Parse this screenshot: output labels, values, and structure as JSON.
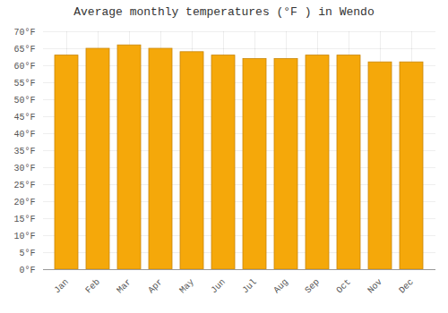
{
  "chart_data": {
    "type": "bar",
    "title": "Average monthly temperatures (°F ) in Wendo",
    "categories": [
      "Jan",
      "Feb",
      "Mar",
      "Apr",
      "May",
      "Jun",
      "Jul",
      "Aug",
      "Sep",
      "Oct",
      "Nov",
      "Dec"
    ],
    "values": [
      63,
      65,
      66,
      65,
      64,
      63,
      62,
      62,
      63,
      63,
      61,
      61
    ],
    "color": "#F5A80A",
    "ylim": [
      0,
      70
    ],
    "yticks": [
      {
        "value": 0,
        "label": "0°F"
      },
      {
        "value": 5,
        "label": "5°F"
      },
      {
        "value": 10,
        "label": "10°F"
      },
      {
        "value": 15,
        "label": "15°F"
      },
      {
        "value": 20,
        "label": "20°F"
      },
      {
        "value": 25,
        "label": "25°F"
      },
      {
        "value": 30,
        "label": "30°F"
      },
      {
        "value": 35,
        "label": "35°F"
      },
      {
        "value": 40,
        "label": "40°F"
      },
      {
        "value": 45,
        "label": "45°F"
      },
      {
        "value": 50,
        "label": "50°F"
      },
      {
        "value": 55,
        "label": "55°F"
      },
      {
        "value": 60,
        "label": "60°F"
      },
      {
        "value": 65,
        "label": "65°F"
      },
      {
        "value": 70,
        "label": "70°F"
      }
    ],
    "grid": true
  }
}
